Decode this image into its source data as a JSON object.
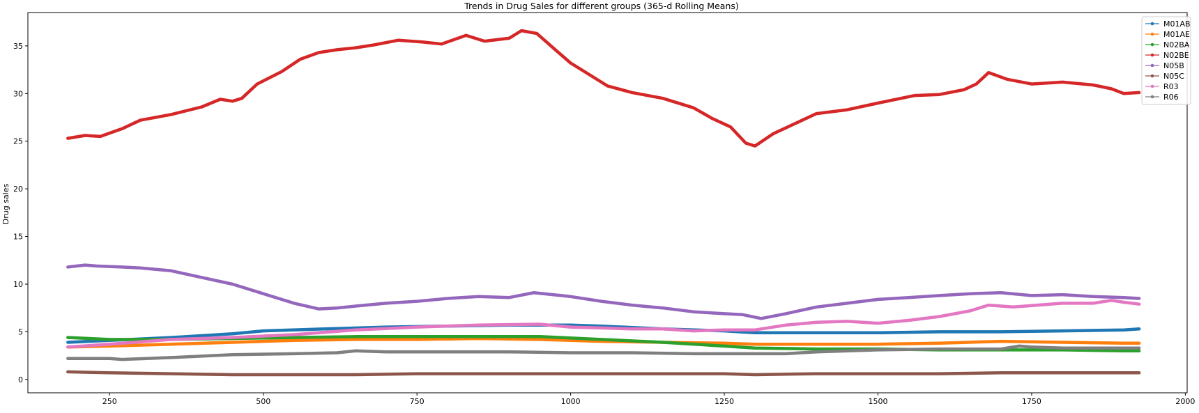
{
  "chart_data": {
    "type": "line",
    "title": "Trends in Drug Sales for different groups (365-d Rolling Means)",
    "xlabel": "",
    "ylabel": "Drug sales",
    "xlim": [
      117,
      2003
    ],
    "ylim": [
      -1.4,
      38.5
    ],
    "xticks": [
      250,
      500,
      750,
      1000,
      1250,
      1500,
      1750,
      2000
    ],
    "yticks": [
      0,
      5,
      10,
      15,
      20,
      25,
      30,
      35
    ],
    "grid": false,
    "legend_position": "top-right",
    "series": [
      {
        "name": "M01AB",
        "color": "#1f77b4",
        "x": [
          182,
          250,
          350,
          450,
          500,
          600,
          700,
          800,
          900,
          1000,
          1050,
          1150,
          1250,
          1300,
          1400,
          1500,
          1600,
          1700,
          1800,
          1900,
          1925
        ],
        "y": [
          3.9,
          4.1,
          4.4,
          4.8,
          5.1,
          5.3,
          5.5,
          5.6,
          5.7,
          5.7,
          5.6,
          5.3,
          5.1,
          4.9,
          4.9,
          4.9,
          5.0,
          5.0,
          5.1,
          5.2,
          5.3
        ]
      },
      {
        "name": "M01AE",
        "color": "#ff7f0e",
        "x": [
          182,
          250,
          350,
          450,
          550,
          650,
          750,
          850,
          950,
          1050,
          1150,
          1250,
          1300,
          1400,
          1500,
          1600,
          1700,
          1800,
          1900,
          1925
        ],
        "y": [
          3.4,
          3.5,
          3.7,
          3.9,
          4.1,
          4.2,
          4.2,
          4.3,
          4.2,
          4.0,
          3.9,
          3.8,
          3.7,
          3.7,
          3.7,
          3.8,
          4.0,
          3.9,
          3.8,
          3.8
        ]
      },
      {
        "name": "N02BA",
        "color": "#2ca02c",
        "x": [
          182,
          250,
          350,
          450,
          550,
          650,
          750,
          850,
          950,
          1050,
          1150,
          1250,
          1300,
          1400,
          1500,
          1600,
          1700,
          1800,
          1900,
          1925
        ],
        "y": [
          4.4,
          4.2,
          4.2,
          4.3,
          4.4,
          4.5,
          4.5,
          4.5,
          4.5,
          4.2,
          3.9,
          3.5,
          3.3,
          3.2,
          3.2,
          3.1,
          3.1,
          3.1,
          3.0,
          3.0
        ]
      },
      {
        "name": "N02BE",
        "color": "#d62728",
        "x": [
          182,
          210,
          235,
          270,
          300,
          350,
          400,
          430,
          450,
          465,
          490,
          530,
          560,
          590,
          620,
          650,
          680,
          720,
          760,
          790,
          830,
          860,
          900,
          920,
          945,
          975,
          1000,
          1030,
          1060,
          1100,
          1150,
          1200,
          1230,
          1260,
          1285,
          1300,
          1330,
          1370,
          1400,
          1450,
          1500,
          1560,
          1600,
          1640,
          1660,
          1680,
          1710,
          1750,
          1800,
          1850,
          1880,
          1900,
          1925
        ],
        "y": [
          25.3,
          25.6,
          25.5,
          26.3,
          27.2,
          27.8,
          28.6,
          29.4,
          29.2,
          29.5,
          31.0,
          32.3,
          33.6,
          34.3,
          34.6,
          34.8,
          35.1,
          35.6,
          35.4,
          35.2,
          36.1,
          35.5,
          35.8,
          36.6,
          36.3,
          34.6,
          33.2,
          32.0,
          30.8,
          30.1,
          29.5,
          28.5,
          27.4,
          26.5,
          24.8,
          24.5,
          25.8,
          27.0,
          27.9,
          28.3,
          29.0,
          29.8,
          29.9,
          30.4,
          31.0,
          32.2,
          31.5,
          31.0,
          31.2,
          30.9,
          30.5,
          30.0,
          30.1
        ]
      },
      {
        "name": "N05B",
        "color": "#9467bd",
        "x": [
          182,
          210,
          230,
          270,
          300,
          350,
          400,
          450,
          500,
          550,
          590,
          620,
          650,
          700,
          750,
          800,
          850,
          900,
          940,
          1000,
          1050,
          1100,
          1150,
          1200,
          1250,
          1280,
          1310,
          1350,
          1400,
          1450,
          1500,
          1550,
          1600,
          1650,
          1700,
          1750,
          1800,
          1850,
          1900,
          1925
        ],
        "y": [
          11.8,
          12.0,
          11.9,
          11.8,
          11.7,
          11.4,
          10.7,
          10.0,
          9.0,
          8.0,
          7.4,
          7.5,
          7.7,
          8.0,
          8.2,
          8.5,
          8.7,
          8.6,
          9.1,
          8.7,
          8.2,
          7.8,
          7.5,
          7.1,
          6.9,
          6.8,
          6.4,
          6.9,
          7.6,
          8.0,
          8.4,
          8.6,
          8.8,
          9.0,
          9.1,
          8.8,
          8.9,
          8.7,
          8.6,
          8.5
        ]
      },
      {
        "name": "N05C",
        "color": "#8c564b",
        "x": [
          182,
          250,
          350,
          450,
          550,
          650,
          750,
          850,
          950,
          1050,
          1150,
          1250,
          1300,
          1400,
          1500,
          1600,
          1700,
          1800,
          1900,
          1925
        ],
        "y": [
          0.8,
          0.7,
          0.6,
          0.5,
          0.5,
          0.5,
          0.6,
          0.6,
          0.6,
          0.6,
          0.6,
          0.6,
          0.5,
          0.6,
          0.6,
          0.6,
          0.7,
          0.7,
          0.7,
          0.7
        ]
      },
      {
        "name": "R03",
        "color": "#e377c2",
        "x": [
          182,
          250,
          350,
          450,
          550,
          650,
          750,
          850,
          950,
          1000,
          1050,
          1100,
          1150,
          1200,
          1250,
          1300,
          1350,
          1400,
          1450,
          1500,
          1550,
          1600,
          1650,
          1680,
          1720,
          1760,
          1800,
          1850,
          1880,
          1900,
          1925
        ],
        "y": [
          3.4,
          3.7,
          4.2,
          4.4,
          4.7,
          5.2,
          5.5,
          5.7,
          5.8,
          5.5,
          5.4,
          5.3,
          5.3,
          5.1,
          5.2,
          5.2,
          5.7,
          6.0,
          6.1,
          5.9,
          6.2,
          6.6,
          7.2,
          7.8,
          7.6,
          7.8,
          8.0,
          8.0,
          8.3,
          8.1,
          7.9
        ]
      },
      {
        "name": "R06",
        "color": "#7f7f7f",
        "x": [
          182,
          250,
          270,
          350,
          450,
          550,
          620,
          650,
          700,
          800,
          900,
          1000,
          1100,
          1200,
          1300,
          1350,
          1400,
          1500,
          1600,
          1700,
          1730,
          1750,
          1800,
          1900,
          1925
        ],
        "y": [
          2.2,
          2.2,
          2.1,
          2.3,
          2.6,
          2.7,
          2.8,
          3.0,
          2.9,
          2.9,
          2.9,
          2.8,
          2.8,
          2.7,
          2.7,
          2.7,
          2.9,
          3.1,
          3.2,
          3.2,
          3.5,
          3.4,
          3.3,
          3.3,
          3.3
        ]
      }
    ]
  }
}
